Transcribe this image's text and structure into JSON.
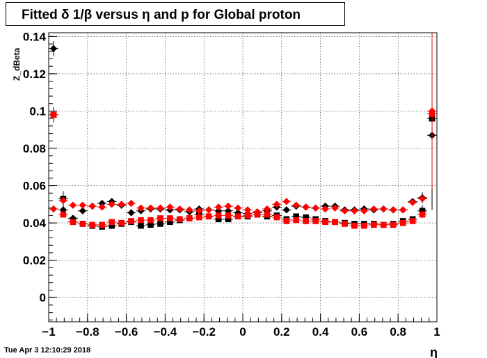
{
  "title": "Fitted δ 1/β versus η and p for Global proton",
  "timestamp": "Tue Apr  3 12:10:29 2018",
  "colors": {
    "series_black": "#000000",
    "series_red": "#ff0000",
    "grid": "#000000",
    "frame": "#000000"
  },
  "chart_data": {
    "type": "scatter",
    "title": "Fitted δ 1/β versus η and p for Global proton",
    "xlabel": "η",
    "ylabel": "Z_dBeta",
    "xlim": [
      -1.0,
      1.0
    ],
    "ylim": [
      -0.013,
      0.142
    ],
    "grid": true,
    "x_ticks": [
      -1.0,
      -0.8,
      -0.6,
      -0.4,
      -0.2,
      0.0,
      0.2,
      0.4,
      0.6,
      0.8,
      1.0
    ],
    "x_tick_labels": [
      "−1",
      "−0.8",
      "−0.6",
      "−0.4",
      "−0.2",
      "0",
      "0.2",
      "0.4",
      "0.6",
      "0.8",
      "1"
    ],
    "y_ticks": [
      0.0,
      0.02,
      0.04,
      0.06,
      0.08,
      0.1,
      0.12,
      0.14
    ],
    "y_tick_labels": [
      "0",
      "0.02",
      "0.04",
      "0.06",
      "0.08",
      "0.1",
      "0.12",
      "0.14"
    ],
    "series": [
      {
        "marker": "diamond",
        "color": "#000000",
        "x": [
          -0.975,
          -0.925,
          -0.875,
          -0.825,
          -0.775,
          -0.725,
          -0.675,
          -0.625,
          -0.575,
          -0.525,
          -0.475,
          -0.425,
          -0.375,
          -0.325,
          -0.275,
          -0.225,
          -0.175,
          -0.125,
          -0.075,
          -0.025,
          0.025,
          0.075,
          0.125,
          0.175,
          0.225,
          0.275,
          0.325,
          0.375,
          0.425,
          0.475,
          0.525,
          0.575,
          0.625,
          0.675,
          0.725,
          0.775,
          0.825,
          0.875,
          0.925,
          0.975
        ],
        "y": [
          0.1335,
          0.047,
          0.0425,
          0.0465,
          0.049,
          0.0505,
          0.0515,
          0.0495,
          0.0455,
          0.0465,
          0.0475,
          0.0475,
          0.047,
          0.047,
          0.046,
          0.0475,
          0.047,
          0.0465,
          0.0465,
          0.0455,
          0.045,
          0.0455,
          0.0465,
          0.0485,
          0.047,
          0.049,
          0.0485,
          0.048,
          0.049,
          0.049,
          0.047,
          0.047,
          0.0475,
          0.047,
          0.0475,
          0.047,
          0.047,
          0.0515,
          0.0535,
          0.087
        ],
        "err": [
          0.004,
          0.004,
          0.0008,
          0.0008,
          0.0008,
          0.0008,
          0.0008,
          0.0008,
          0.0008,
          0.0008,
          0.0008,
          0.0008,
          0.0008,
          0.0008,
          0.0008,
          0.0008,
          0.0008,
          0.0008,
          0.0008,
          0.0008,
          0.0008,
          0.0008,
          0.0008,
          0.0008,
          0.0008,
          0.0008,
          0.0008,
          0.0008,
          0.0008,
          0.0008,
          0.0008,
          0.0008,
          0.0008,
          0.0008,
          0.0008,
          0.0008,
          0.0008,
          0.0008,
          0.003,
          0.04
        ]
      },
      {
        "marker": "square",
        "color": "#000000",
        "x": [
          -0.975,
          -0.925,
          -0.875,
          -0.825,
          -0.775,
          -0.725,
          -0.675,
          -0.625,
          -0.575,
          -0.525,
          -0.475,
          -0.425,
          -0.375,
          -0.325,
          -0.275,
          -0.225,
          -0.175,
          -0.125,
          -0.075,
          -0.025,
          0.025,
          0.075,
          0.125,
          0.175,
          0.225,
          0.275,
          0.325,
          0.375,
          0.425,
          0.475,
          0.525,
          0.575,
          0.625,
          0.675,
          0.725,
          0.775,
          0.825,
          0.875,
          0.925,
          0.975
        ],
        "y": [
          0.098,
          0.053,
          0.0405,
          0.0395,
          0.0385,
          0.038,
          0.0385,
          0.0395,
          0.0405,
          0.0385,
          0.039,
          0.0395,
          0.0405,
          0.0415,
          0.0425,
          0.0445,
          0.0435,
          0.042,
          0.042,
          0.0435,
          0.0435,
          0.0445,
          0.0435,
          0.044,
          0.042,
          0.0435,
          0.043,
          0.042,
          0.041,
          0.0405,
          0.04,
          0.0395,
          0.0395,
          0.0395,
          0.039,
          0.0395,
          0.041,
          0.042,
          0.0465,
          0.096
        ],
        "err": [
          0.004,
          0.004,
          0.0008,
          0.0008,
          0.0008,
          0.0008,
          0.0008,
          0.0008,
          0.0008,
          0.0008,
          0.0008,
          0.0008,
          0.0008,
          0.0008,
          0.0008,
          0.0008,
          0.0008,
          0.0008,
          0.0008,
          0.0008,
          0.0008,
          0.0008,
          0.0008,
          0.0008,
          0.0008,
          0.0008,
          0.0008,
          0.0008,
          0.0008,
          0.0008,
          0.0008,
          0.0008,
          0.0008,
          0.0008,
          0.0008,
          0.0008,
          0.0008,
          0.0008,
          0.003,
          0.006
        ]
      },
      {
        "marker": "diamond",
        "color": "#ff0000",
        "x": [
          -0.975,
          -0.925,
          -0.875,
          -0.825,
          -0.775,
          -0.725,
          -0.675,
          -0.625,
          -0.575,
          -0.525,
          -0.475,
          -0.425,
          -0.375,
          -0.325,
          -0.275,
          -0.225,
          -0.175,
          -0.125,
          -0.075,
          -0.025,
          0.025,
          0.075,
          0.125,
          0.175,
          0.225,
          0.275,
          0.325,
          0.375,
          0.425,
          0.475,
          0.525,
          0.575,
          0.625,
          0.675,
          0.725,
          0.775,
          0.825,
          0.875,
          0.925,
          0.975
        ],
        "y": [
          0.0475,
          0.052,
          0.0495,
          0.0495,
          0.049,
          0.0485,
          0.05,
          0.05,
          0.0505,
          0.048,
          0.048,
          0.048,
          0.0485,
          0.0475,
          0.047,
          0.0465,
          0.047,
          0.0485,
          0.049,
          0.048,
          0.047,
          0.046,
          0.0475,
          0.05,
          0.0515,
          0.0495,
          0.0485,
          0.048,
          0.0475,
          0.048,
          0.0465,
          0.0465,
          0.0465,
          0.0475,
          0.0475,
          0.047,
          0.047,
          0.051,
          0.053,
          0.1
        ],
        "err": [
          0.001,
          0.001,
          0.0008,
          0.0008,
          0.0008,
          0.0008,
          0.0008,
          0.0008,
          0.0008,
          0.0008,
          0.0008,
          0.0008,
          0.0008,
          0.0008,
          0.0008,
          0.0008,
          0.0008,
          0.0008,
          0.0008,
          0.0008,
          0.0008,
          0.0008,
          0.0008,
          0.0008,
          0.0008,
          0.0008,
          0.0008,
          0.0008,
          0.0008,
          0.0008,
          0.0008,
          0.0008,
          0.0008,
          0.0008,
          0.0008,
          0.0008,
          0.0008,
          0.0008,
          0.002,
          0.042
        ]
      },
      {
        "marker": "square",
        "color": "#ff0000",
        "x": [
          -0.975,
          -0.925,
          -0.875,
          -0.825,
          -0.775,
          -0.725,
          -0.675,
          -0.625,
          -0.575,
          -0.525,
          -0.475,
          -0.425,
          -0.375,
          -0.325,
          -0.275,
          -0.225,
          -0.175,
          -0.125,
          -0.075,
          -0.025,
          0.025,
          0.075,
          0.125,
          0.175,
          0.225,
          0.275,
          0.325,
          0.375,
          0.425,
          0.475,
          0.525,
          0.575,
          0.625,
          0.675,
          0.725,
          0.775,
          0.825,
          0.875,
          0.925,
          0.975
        ],
        "y": [
          0.098,
          0.0445,
          0.0405,
          0.0395,
          0.039,
          0.039,
          0.0405,
          0.04,
          0.041,
          0.0415,
          0.0415,
          0.0425,
          0.0425,
          0.042,
          0.0425,
          0.043,
          0.0435,
          0.044,
          0.044,
          0.0435,
          0.044,
          0.0445,
          0.0445,
          0.043,
          0.041,
          0.0415,
          0.041,
          0.041,
          0.0405,
          0.0405,
          0.0395,
          0.0385,
          0.0385,
          0.039,
          0.039,
          0.039,
          0.04,
          0.041,
          0.0445,
          0.0985
        ],
        "err": [
          0.002,
          0.001,
          0.0008,
          0.0008,
          0.0008,
          0.0008,
          0.0008,
          0.0008,
          0.0008,
          0.0008,
          0.0008,
          0.0008,
          0.0008,
          0.0008,
          0.0008,
          0.0008,
          0.0008,
          0.0008,
          0.0008,
          0.0008,
          0.0008,
          0.0008,
          0.0008,
          0.0008,
          0.0008,
          0.0008,
          0.0008,
          0.0008,
          0.0008,
          0.0008,
          0.0008,
          0.0008,
          0.0008,
          0.0008,
          0.0008,
          0.0008,
          0.0008,
          0.0008,
          0.002,
          0.004
        ]
      }
    ]
  }
}
